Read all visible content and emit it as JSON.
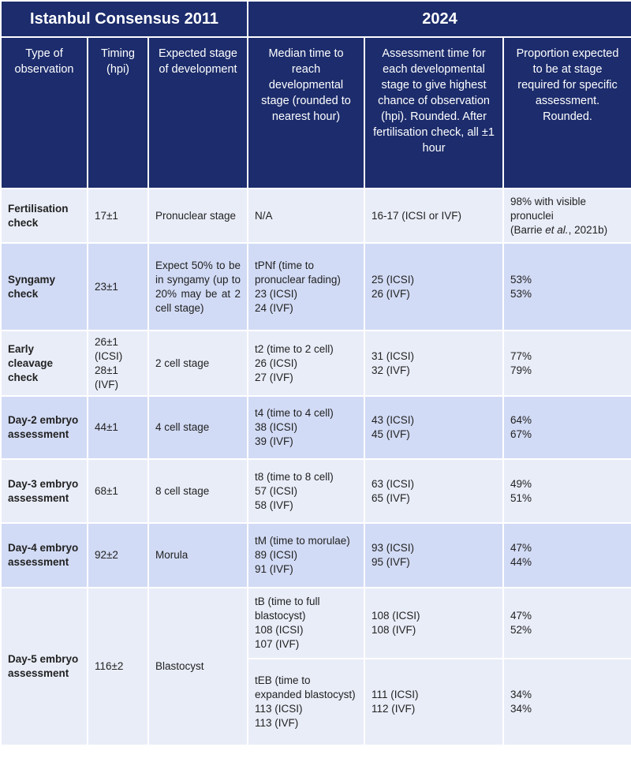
{
  "header": {
    "group_titles": [
      "Istanbul Consensus 2011",
      "2024"
    ],
    "columns": [
      "Type of observation",
      "Timing (hpi)",
      "Expected stage of development",
      "Median time to reach developmental stage (rounded to nearest hour)",
      "Assessment time for each developmental stage to give highest chance of observation (hpi). Rounded. After fertilisation check, all ±1 hour",
      "Proportion expected to be at stage required for specific assessment. Rounded."
    ]
  },
  "rows": [
    {
      "observation": "Fertilisation check",
      "timing": [
        "17±1"
      ],
      "expected": "Pronuclear stage",
      "stages": [
        {
          "median": [
            "N/A"
          ],
          "assessment": [
            "16-17 (ICSI or IVF)"
          ],
          "proportion": [
            "98% with visible pronuclei",
            [
              "(Barrie ",
              "et al.",
              ", 2021b)"
            ]
          ]
        }
      ]
    },
    {
      "observation": "Syngamy check",
      "timing": [
        "23±1"
      ],
      "expected": "Expect 50% to be in syngamy (up to 20% may be at 2 cell stage)",
      "stages": [
        {
          "median": [
            "tPNf (time to pronuclear fading)",
            "23 (ICSI)",
            "24 (IVF)"
          ],
          "assessment": [
            "25 (ICSI)",
            "26 (IVF)"
          ],
          "proportion": [
            "53%",
            "53%"
          ]
        }
      ]
    },
    {
      "observation": "Early cleavage check",
      "timing": [
        "26±1 (ICSI)",
        "28±1 (IVF)"
      ],
      "expected": "2 cell stage",
      "stages": [
        {
          "median": [
            "t2 (time to 2 cell)",
            "26 (ICSI)",
            "27 (IVF)"
          ],
          "assessment": [
            "31 (ICSI)",
            "32 (IVF)"
          ],
          "proportion": [
            "77%",
            "79%"
          ]
        }
      ]
    },
    {
      "observation": "Day-2 embryo assessment",
      "timing": [
        "44±1"
      ],
      "expected": "4 cell stage",
      "stages": [
        {
          "median": [
            "t4 (time to 4 cell)",
            "38 (ICSI)",
            "39 (IVF)"
          ],
          "assessment": [
            "43 (ICSI)",
            "45 (IVF)"
          ],
          "proportion": [
            "64%",
            "67%"
          ]
        }
      ]
    },
    {
      "observation": "Day-3 embryo assessment",
      "timing": [
        "68±1"
      ],
      "expected": "8 cell stage",
      "stages": [
        {
          "median": [
            "t8 (time to 8 cell)",
            "57 (ICSI)",
            "58 (IVF)"
          ],
          "assessment": [
            "63 (ICSI)",
            "65 (IVF)"
          ],
          "proportion": [
            "49%",
            "51%"
          ]
        }
      ]
    },
    {
      "observation": "Day-4 embryo assessment",
      "timing": [
        "92±2"
      ],
      "expected": "Morula",
      "stages": [
        {
          "median": [
            "tM (time to morulae)",
            "89 (ICSI)",
            "91 (IVF)"
          ],
          "assessment": [
            "93 (ICSI)",
            "95 (IVF)"
          ],
          "proportion": [
            "47%",
            "44%"
          ]
        }
      ]
    },
    {
      "observation": "Day-5 embryo assessment",
      "timing": [
        "116±2"
      ],
      "expected": "Blastocyst",
      "stages": [
        {
          "median": [
            "tB (time to full blastocyst)",
            "108 (ICSI)",
            "107 (IVF)"
          ],
          "assessment": [
            "108 (ICSI)",
            "108 (IVF)"
          ],
          "proportion": [
            "47%",
            "52%"
          ]
        },
        {
          "median": [
            "tEB (time to expanded blastocyst)",
            "113 (ICSI)",
            "113 (IVF)"
          ],
          "assessment": [
            "111 (ICSI)",
            "112 (IVF)"
          ],
          "proportion": [
            "34%",
            "34%"
          ]
        }
      ]
    }
  ]
}
